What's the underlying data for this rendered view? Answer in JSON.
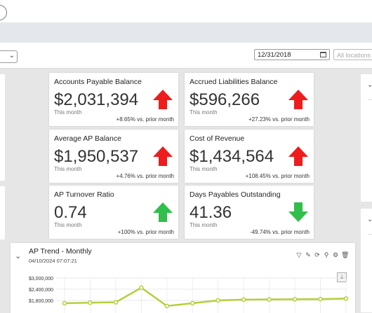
{
  "filters": {
    "date_value": "12/31/2018",
    "locations_placeholder": "All locations"
  },
  "colors": {
    "up_red": "#ee1c1c",
    "down_green": "#2fbf4a",
    "chart_line": "#b5cf3a"
  },
  "cards": [
    {
      "title": "Accounts Payable Balance",
      "value": "$2,031,394",
      "subtitle": "This month",
      "change": "+8.65% vs. prior month",
      "trend_icon": "arrow-up-red-icon"
    },
    {
      "title": "Accrued Liabilities Balance",
      "value": "$596,266",
      "subtitle": "This month",
      "change": "+27.23% vs. prior month",
      "trend_icon": "arrow-up-red-icon"
    },
    {
      "title": "Average AP Balance",
      "value": "$1,950,537",
      "subtitle": "This month",
      "change": "+4.76% vs. prior month",
      "trend_icon": "arrow-up-red-icon"
    },
    {
      "title": "Cost of Revenue",
      "value": "$1,434,564",
      "subtitle": "This month",
      "change": "+108.45% vs. prior month",
      "trend_icon": "arrow-up-red-icon"
    },
    {
      "title": "AP Turnover Ratio",
      "value": "0.74",
      "subtitle": "This month",
      "change": "+100% vs. prior month",
      "trend_icon": "arrow-up-green-icon"
    },
    {
      "title": "Days Payables Outstanding",
      "value": "41.36",
      "subtitle": "This month",
      "change": "-49.74% vs. prior month",
      "trend_icon": "arrow-down-green-icon"
    }
  ],
  "trend_panel": {
    "title": "AP Trend - Monthly",
    "timestamp": "04/10/2024 07:07:21"
  },
  "chart_data": {
    "type": "line",
    "title": "AP Trend - Monthly",
    "yticks": [
      "$3,000,000",
      "$2,400,000",
      "$1,800,000"
    ],
    "ylim": [
      1800000,
      3000000
    ],
    "series": [
      {
        "values": [
          1650000,
          1680000,
          1700000,
          2480000,
          1500000,
          1650000,
          1800000,
          1840000,
          1850000,
          1860000,
          1870000,
          1900000
        ]
      }
    ]
  }
}
